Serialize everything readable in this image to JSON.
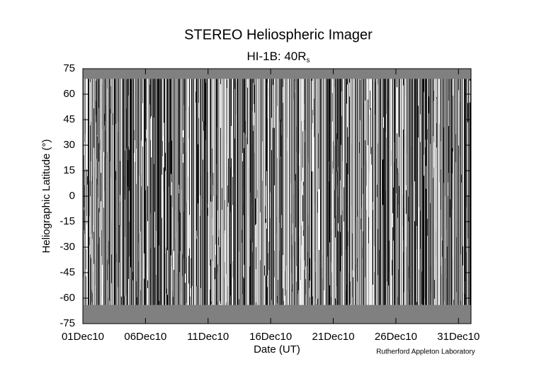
{
  "chart_data": {
    "type": "jmap",
    "title": "STEREO Heliospheric Imager",
    "subtitle": "HI-1B: 40R",
    "subtitle_subscript": "s",
    "x_label": "Date (UT)",
    "y_label": "Heliographic Latitude (°)",
    "credit": "Rutherford Appleton Laboratory",
    "xlim": [
      1,
      32
    ],
    "xticks": [
      {
        "value": 1,
        "label": "01Dec10"
      },
      {
        "value": 6,
        "label": "06Dec10"
      },
      {
        "value": 11,
        "label": "11Dec10"
      },
      {
        "value": 16,
        "label": "16Dec10"
      },
      {
        "value": 21,
        "label": "21Dec10"
      },
      {
        "value": 26,
        "label": "26Dec10"
      },
      {
        "value": 31,
        "label": "31Dec10"
      }
    ],
    "ylim": [
      -75,
      75
    ],
    "yticks": [
      -75,
      -60,
      -45,
      -30,
      -15,
      0,
      15,
      30,
      45,
      60,
      75
    ],
    "data_extent": [
      -64,
      69
    ],
    "fill_color": "#808080"
  }
}
